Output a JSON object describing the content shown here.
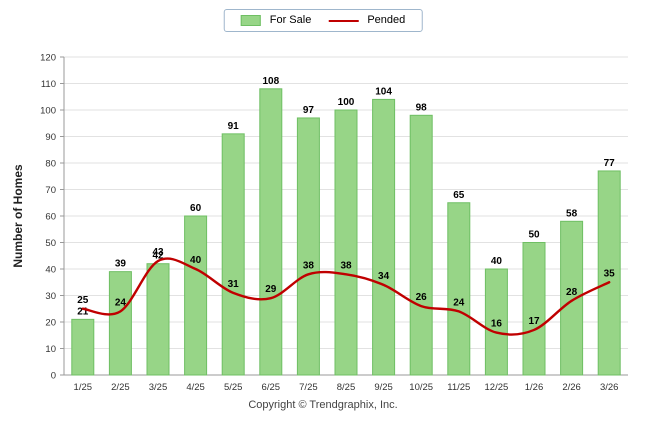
{
  "legend": {
    "items": [
      {
        "label": "For Sale",
        "swatch": "bar"
      },
      {
        "label": "Pended",
        "swatch": "line"
      }
    ]
  },
  "y_axis_title": "Number of Homes",
  "footer_text": "Copyright © Trendgraphix, Inc.",
  "colors": {
    "bar_fill": "#97d587",
    "bar_border": "#6fbf63",
    "line": "#c00000",
    "grid": "#e2e2e2",
    "axis": "#999999",
    "legend_border": "#9fb6cc"
  },
  "chart_data": {
    "type": "bar",
    "categories": [
      "1/25",
      "2/25",
      "3/25",
      "4/25",
      "5/25",
      "6/25",
      "7/25",
      "8/25",
      "9/25",
      "10/25",
      "11/25",
      "12/25",
      "1/26",
      "2/26",
      "3/26"
    ],
    "series": [
      {
        "name": "For Sale",
        "type": "bar",
        "color": "#97d587",
        "border_color": "#6fbf63",
        "values": [
          21,
          39,
          42,
          60,
          91,
          108,
          97,
          100,
          104,
          98,
          65,
          40,
          50,
          58,
          77
        ]
      },
      {
        "name": "Pended",
        "type": "line",
        "color": "#c00000",
        "values": [
          25,
          24,
          43,
          40,
          31,
          29,
          38,
          38,
          34,
          26,
          24,
          16,
          17,
          28,
          35
        ]
      }
    ],
    "title": "",
    "xlabel": "",
    "ylabel": "Number of Homes",
    "ylim": [
      0,
      120
    ],
    "ytick_step": 10,
    "grid": true,
    "legend_position": "top-center",
    "data_labels": true
  }
}
